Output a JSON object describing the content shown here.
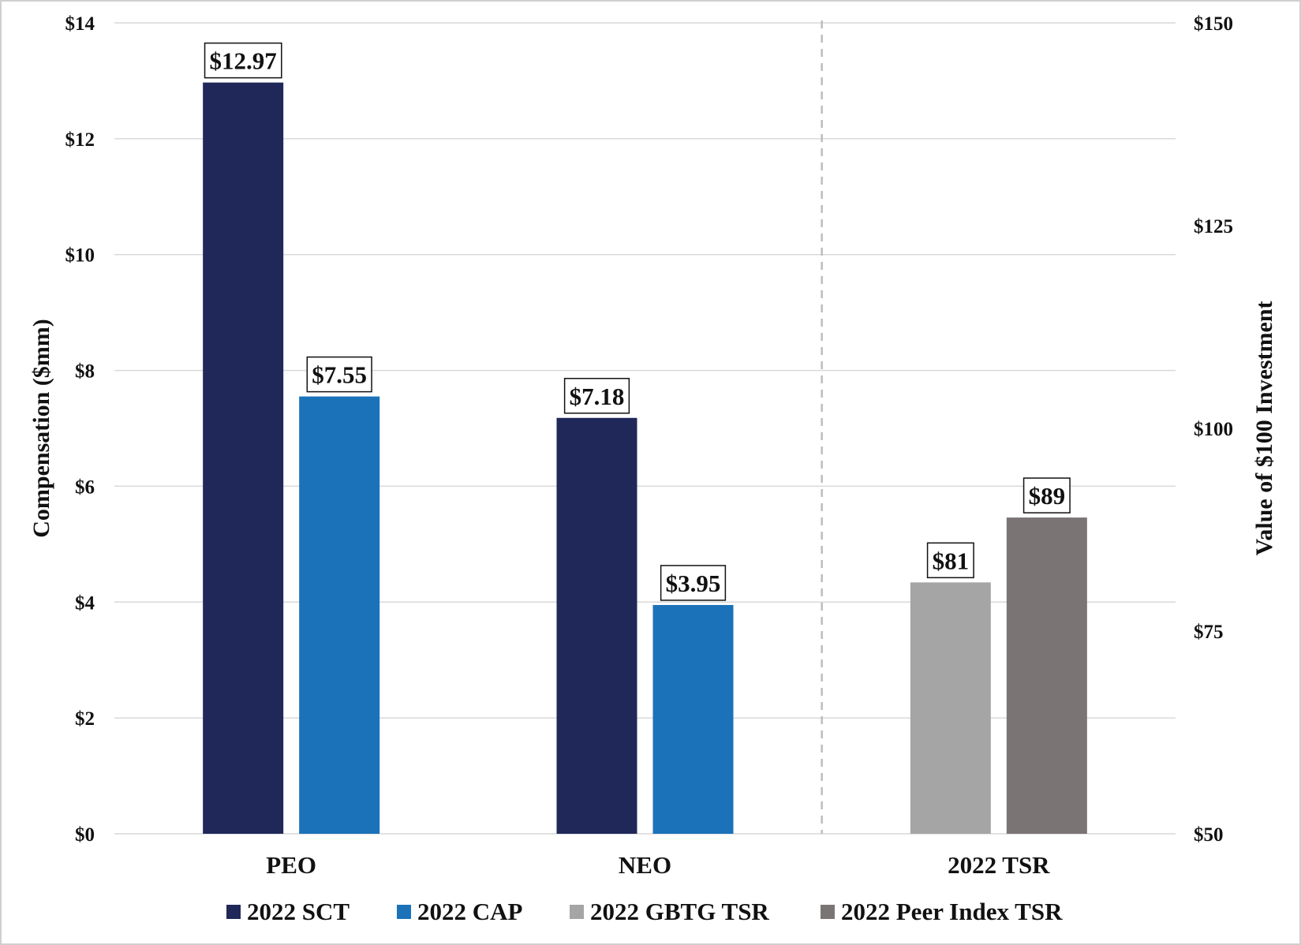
{
  "chart_data": {
    "type": "bar",
    "categories": [
      "PEO",
      "NEO",
      "2022 TSR"
    ],
    "left_axis": {
      "title": "Compensation ($mm)",
      "min": 0,
      "max": 14,
      "step": 2,
      "tick_labels": [
        "$0",
        "$2",
        "$4",
        "$6",
        "$8",
        "$10",
        "$12",
        "$14"
      ]
    },
    "right_axis": {
      "title": "Value of $100 Investment",
      "min": 50,
      "max": 150,
      "step": 25,
      "tick_labels": [
        "$50",
        "$75",
        "$100",
        "$125",
        "$150"
      ]
    },
    "series": [
      {
        "name": "2022 SCT",
        "color": "#1f2859",
        "axis": "left",
        "values": [
          12.97,
          7.18,
          null
        ],
        "labels": [
          "$12.97",
          "$7.18",
          null
        ]
      },
      {
        "name": "2022 CAP",
        "color": "#1b72b9",
        "axis": "left",
        "values": [
          7.55,
          3.95,
          null
        ],
        "labels": [
          "$7.55",
          "$3.95",
          null
        ]
      },
      {
        "name": "2022 GBTG TSR",
        "color": "#a5a5a5",
        "axis": "right",
        "values": [
          null,
          null,
          81
        ],
        "labels": [
          null,
          null,
          "$81"
        ]
      },
      {
        "name": "2022 Peer Index TSR",
        "color": "#7a7474",
        "axis": "right",
        "values": [
          null,
          null,
          89
        ],
        "labels": [
          null,
          null,
          "$89"
        ]
      }
    ],
    "grid": true,
    "separator": "dashed line between NEO and 2022 TSR",
    "legend_position": "bottom"
  }
}
